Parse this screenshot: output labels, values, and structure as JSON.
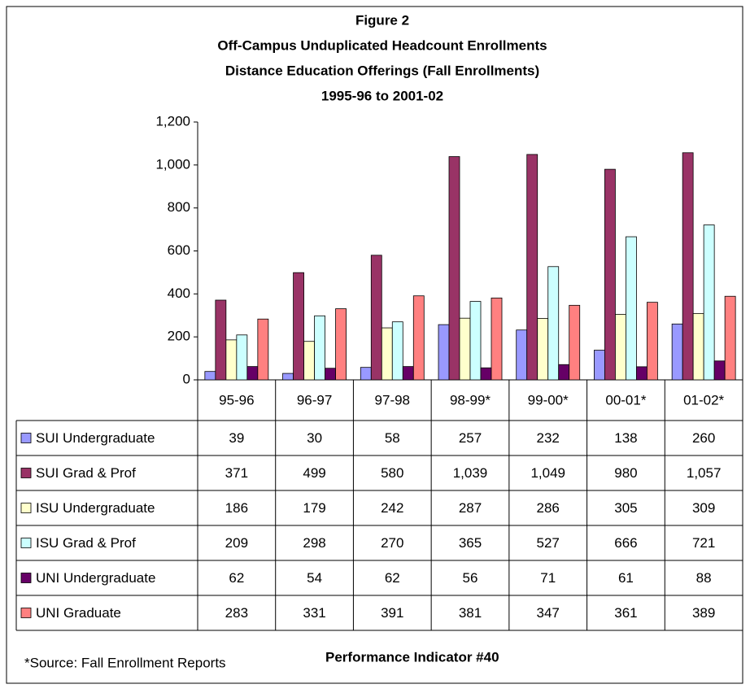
{
  "chart_data": {
    "type": "bar",
    "title": "Figure 2",
    "subtitle": [
      "Off-Campus Unduplicated Headcount Enrollments",
      "Distance Education Offerings (Fall Enrollments)",
      "1995-96 to 2001-02"
    ],
    "categories": [
      "95-96",
      "96-97",
      "97-98",
      "98-99*",
      "99-00*",
      "00-01*",
      "01-02*"
    ],
    "series": [
      {
        "name": "SUI Undergraduate",
        "color": "#9999ff",
        "values": [
          39,
          30,
          58,
          257,
          232,
          138,
          260
        ]
      },
      {
        "name": "SUI Grad & Prof",
        "color": "#993366",
        "values": [
          371,
          499,
          580,
          1039,
          1049,
          980,
          1057
        ],
        "value_labels": [
          "371",
          "499",
          "580",
          "1,039",
          "1,049",
          "980",
          "1,057"
        ]
      },
      {
        "name": "ISU Undergraduate",
        "color": "#ffffcc",
        "values": [
          186,
          179,
          242,
          287,
          286,
          305,
          309
        ]
      },
      {
        "name": "ISU Grad & Prof",
        "color": "#ccffff",
        "values": [
          209,
          298,
          270,
          365,
          527,
          666,
          721
        ]
      },
      {
        "name": "UNI Undergraduate",
        "color": "#660066",
        "values": [
          62,
          54,
          62,
          56,
          71,
          61,
          88
        ]
      },
      {
        "name": "UNI Graduate",
        "color": "#ff8080",
        "values": [
          283,
          331,
          391,
          381,
          347,
          361,
          389
        ]
      }
    ],
    "ylim": [
      0,
      1200
    ],
    "yticks": [
      0,
      200,
      400,
      600,
      800,
      {
        "value": 1000,
        "label": "1,000"
      },
      {
        "value": 1200,
        "label": "1,200"
      }
    ],
    "footnote": "*Source:  Fall Enrollment Reports",
    "note": "Performance Indicator #40"
  }
}
